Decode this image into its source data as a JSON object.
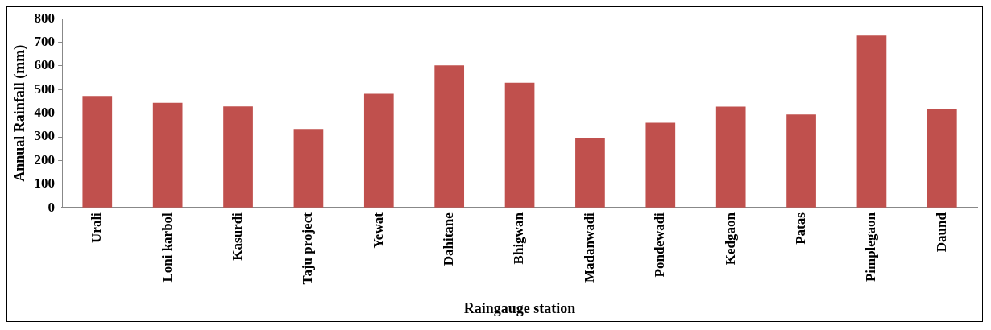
{
  "chart_data": {
    "type": "bar",
    "xlabel": "Raingauge station",
    "ylabel": "Annual Rainfall (mm)",
    "categories": [
      "Urali",
      "Loni karbol",
      "Kasurdi",
      "Taju project",
      "Yewat",
      "Dahitane",
      "Bhigwan",
      "Madanwadi",
      "Pondewadi",
      "Kedgaon",
      "Patas",
      "Pimplegaon",
      "Daund"
    ],
    "values": [
      473,
      444,
      429,
      333,
      482,
      602,
      529,
      296,
      360,
      428,
      395,
      728,
      419
    ],
    "color": "#c0504d",
    "ylim": [
      0,
      800
    ],
    "yticks": [
      0,
      100,
      200,
      300,
      400,
      500,
      600,
      700,
      800
    ],
    "grid": false,
    "legend": false
  }
}
